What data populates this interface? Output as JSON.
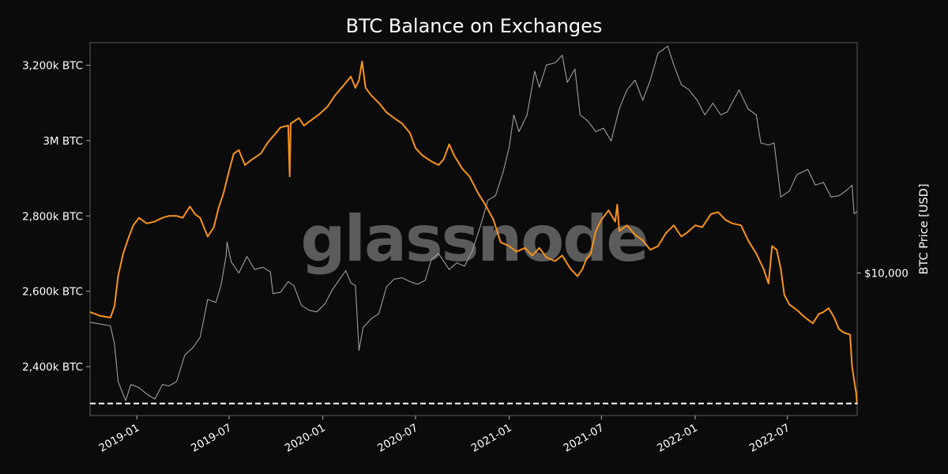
{
  "chart_data": {
    "type": "line",
    "title": "BTC Balance on Exchanges",
    "watermark": "glassnode",
    "xlabel": "",
    "ylabel_left": "",
    "ylabel_right": "BTC Price [USD]",
    "x_tick_labels": [
      "2019-01",
      "2019-07",
      "2020-01",
      "2020-07",
      "2021-01",
      "2021-07",
      "2022-01",
      "2022-07"
    ],
    "x_range": [
      "2018-10-01",
      "2022-11-15"
    ],
    "y_left_ticks": [
      {
        "value": 2400,
        "label": "2,400k BTC"
      },
      {
        "value": 2600,
        "label": "2,600k BTC"
      },
      {
        "value": 2800,
        "label": "2,800k BTC"
      },
      {
        "value": 3000,
        "label": "3M BTC"
      },
      {
        "value": 3200,
        "label": "3,200k BTC"
      }
    ],
    "y_left_unit": "k BTC",
    "y_left_range": [
      2270,
      3260
    ],
    "y_right_scale": "log",
    "y_right_range": [
      3000,
      70000
    ],
    "y_right_ticks": [
      {
        "value": 10000,
        "label": "$10,000"
      }
    ],
    "grid": false,
    "reference_line": {
      "value": 2302,
      "style": "dashed",
      "color": "#ffffff"
    },
    "series": [
      {
        "color": "#f7931a",
        "axis": "left",
        "points": [
          [
            "2018-10-01",
            2545
          ],
          [
            "2018-10-20",
            2535
          ],
          [
            "2018-11-10",
            2530
          ],
          [
            "2018-11-18",
            2560
          ],
          [
            "2018-11-25",
            2640
          ],
          [
            "2018-12-05",
            2700
          ],
          [
            "2018-12-15",
            2740
          ],
          [
            "2018-12-25",
            2775
          ],
          [
            "2019-01-05",
            2795
          ],
          [
            "2019-01-20",
            2780
          ],
          [
            "2019-02-05",
            2785
          ],
          [
            "2019-02-20",
            2795
          ],
          [
            "2019-03-05",
            2800
          ],
          [
            "2019-03-20",
            2800
          ],
          [
            "2019-04-01",
            2795
          ],
          [
            "2019-04-15",
            2825
          ],
          [
            "2019-04-25",
            2805
          ],
          [
            "2019-05-05",
            2795
          ],
          [
            "2019-05-20",
            2745
          ],
          [
            "2019-06-01",
            2770
          ],
          [
            "2019-06-10",
            2820
          ],
          [
            "2019-06-20",
            2860
          ],
          [
            "2019-07-01",
            2920
          ],
          [
            "2019-07-10",
            2965
          ],
          [
            "2019-07-20",
            2975
          ],
          [
            "2019-08-01",
            2935
          ],
          [
            "2019-08-15",
            2950
          ],
          [
            "2019-09-01",
            2965
          ],
          [
            "2019-09-15",
            2995
          ],
          [
            "2019-10-01",
            3020
          ],
          [
            "2019-10-10",
            3035
          ],
          [
            "2019-10-25",
            3040
          ],
          [
            "2019-10-28",
            2905
          ],
          [
            "2019-10-30",
            3045
          ],
          [
            "2019-11-15",
            3060
          ],
          [
            "2019-11-25",
            3040
          ],
          [
            "2019-12-10",
            3055
          ],
          [
            "2019-12-25",
            3070
          ],
          [
            "2020-01-10",
            3090
          ],
          [
            "2020-01-25",
            3120
          ],
          [
            "2020-02-10",
            3145
          ],
          [
            "2020-02-25",
            3170
          ],
          [
            "2020-03-05",
            3140
          ],
          [
            "2020-03-12",
            3160
          ],
          [
            "2020-03-18",
            3210
          ],
          [
            "2020-03-25",
            3140
          ],
          [
            "2020-04-05",
            3120
          ],
          [
            "2020-04-20",
            3100
          ],
          [
            "2020-05-05",
            3075
          ],
          [
            "2020-05-20",
            3060
          ],
          [
            "2020-06-05",
            3045
          ],
          [
            "2020-06-20",
            3020
          ],
          [
            "2020-07-01",
            2980
          ],
          [
            "2020-07-15",
            2960
          ],
          [
            "2020-08-01",
            2945
          ],
          [
            "2020-08-15",
            2935
          ],
          [
            "2020-08-25",
            2950
          ],
          [
            "2020-09-05",
            2990
          ],
          [
            "2020-09-15",
            2960
          ],
          [
            "2020-10-01",
            2925
          ],
          [
            "2020-10-15",
            2905
          ],
          [
            "2020-11-01",
            2860
          ],
          [
            "2020-11-15",
            2830
          ],
          [
            "2020-12-01",
            2790
          ],
          [
            "2020-12-15",
            2730
          ],
          [
            "2021-01-01",
            2720
          ],
          [
            "2021-01-15",
            2705
          ],
          [
            "2021-02-01",
            2715
          ],
          [
            "2021-02-15",
            2695
          ],
          [
            "2021-03-01",
            2715
          ],
          [
            "2021-03-15",
            2690
          ],
          [
            "2021-04-01",
            2680
          ],
          [
            "2021-04-15",
            2695
          ],
          [
            "2021-05-01",
            2660
          ],
          [
            "2021-05-15",
            2640
          ],
          [
            "2021-05-25",
            2660
          ],
          [
            "2021-06-01",
            2685
          ],
          [
            "2021-06-10",
            2700
          ],
          [
            "2021-06-20",
            2760
          ],
          [
            "2021-07-01",
            2790
          ],
          [
            "2021-07-15",
            2815
          ],
          [
            "2021-07-28",
            2785
          ],
          [
            "2021-08-01",
            2830
          ],
          [
            "2021-08-05",
            2760
          ],
          [
            "2021-08-20",
            2775
          ],
          [
            "2021-09-05",
            2750
          ],
          [
            "2021-09-20",
            2735
          ],
          [
            "2021-10-05",
            2710
          ],
          [
            "2021-10-20",
            2720
          ],
          [
            "2021-11-05",
            2755
          ],
          [
            "2021-11-20",
            2775
          ],
          [
            "2021-12-05",
            2745
          ],
          [
            "2021-12-20",
            2760
          ],
          [
            "2022-01-01",
            2775
          ],
          [
            "2022-01-15",
            2770
          ],
          [
            "2022-02-01",
            2805
          ],
          [
            "2022-02-15",
            2810
          ],
          [
            "2022-03-01",
            2790
          ],
          [
            "2022-03-15",
            2780
          ],
          [
            "2022-04-01",
            2775
          ],
          [
            "2022-04-15",
            2735
          ],
          [
            "2022-05-01",
            2700
          ],
          [
            "2022-05-15",
            2660
          ],
          [
            "2022-05-25",
            2620
          ],
          [
            "2022-06-01",
            2720
          ],
          [
            "2022-06-10",
            2710
          ],
          [
            "2022-06-18",
            2660
          ],
          [
            "2022-06-25",
            2590
          ],
          [
            "2022-07-05",
            2565
          ],
          [
            "2022-07-20",
            2550
          ],
          [
            "2022-08-05",
            2530
          ],
          [
            "2022-08-20",
            2515
          ],
          [
            "2022-09-01",
            2540
          ],
          [
            "2022-09-10",
            2545
          ],
          [
            "2022-09-20",
            2555
          ],
          [
            "2022-10-01",
            2530
          ],
          [
            "2022-10-10",
            2500
          ],
          [
            "2022-10-20",
            2490
          ],
          [
            "2022-11-01",
            2485
          ],
          [
            "2022-11-05",
            2400
          ],
          [
            "2022-11-10",
            2355
          ],
          [
            "2022-11-13",
            2330
          ],
          [
            "2022-11-15",
            2300
          ]
        ]
      },
      {
        "color": "#9e9e9e",
        "axis": "right",
        "points": [
          [
            "2018-10-01",
            6600
          ],
          [
            "2018-10-20",
            6500
          ],
          [
            "2018-11-10",
            6400
          ],
          [
            "2018-11-18",
            5500
          ],
          [
            "2018-11-25",
            4000
          ],
          [
            "2018-12-10",
            3400
          ],
          [
            "2018-12-20",
            3900
          ],
          [
            "2019-01-05",
            3800
          ],
          [
            "2019-01-20",
            3600
          ],
          [
            "2019-02-05",
            3450
          ],
          [
            "2019-02-20",
            3900
          ],
          [
            "2019-03-05",
            3850
          ],
          [
            "2019-03-20",
            4000
          ],
          [
            "2019-04-05",
            5000
          ],
          [
            "2019-04-20",
            5300
          ],
          [
            "2019-05-05",
            5800
          ],
          [
            "2019-05-20",
            8000
          ],
          [
            "2019-06-05",
            7800
          ],
          [
            "2019-06-15",
            9000
          ],
          [
            "2019-06-25",
            11500
          ],
          [
            "2019-06-27",
            13000
          ],
          [
            "2019-07-05",
            11000
          ],
          [
            "2019-07-20",
            10000
          ],
          [
            "2019-08-05",
            11500
          ],
          [
            "2019-08-20",
            10300
          ],
          [
            "2019-09-05",
            10500
          ],
          [
            "2019-09-20",
            10100
          ],
          [
            "2019-09-25",
            8400
          ],
          [
            "2019-10-10",
            8500
          ],
          [
            "2019-10-25",
            9300
          ],
          [
            "2019-11-05",
            9000
          ],
          [
            "2019-11-20",
            7600
          ],
          [
            "2019-12-05",
            7300
          ],
          [
            "2019-12-20",
            7200
          ],
          [
            "2020-01-05",
            7700
          ],
          [
            "2020-01-20",
            8700
          ],
          [
            "2020-02-05",
            9600
          ],
          [
            "2020-02-15",
            10200
          ],
          [
            "2020-02-25",
            9200
          ],
          [
            "2020-03-05",
            9000
          ],
          [
            "2020-03-12",
            5200
          ],
          [
            "2020-03-20",
            6300
          ],
          [
            "2020-04-05",
            6800
          ],
          [
            "2020-04-20",
            7100
          ],
          [
            "2020-05-05",
            8900
          ],
          [
            "2020-05-20",
            9500
          ],
          [
            "2020-06-05",
            9600
          ],
          [
            "2020-06-20",
            9300
          ],
          [
            "2020-07-05",
            9100
          ],
          [
            "2020-07-20",
            9400
          ],
          [
            "2020-08-01",
            11200
          ],
          [
            "2020-08-15",
            11800
          ],
          [
            "2020-09-05",
            10300
          ],
          [
            "2020-09-20",
            10900
          ],
          [
            "2020-10-05",
            10600
          ],
          [
            "2020-10-20",
            12000
          ],
          [
            "2020-11-05",
            14800
          ],
          [
            "2020-11-20",
            18500
          ],
          [
            "2020-12-05",
            19200
          ],
          [
            "2020-12-20",
            23500
          ],
          [
            "2021-01-01",
            29000
          ],
          [
            "2021-01-10",
            38000
          ],
          [
            "2021-01-20",
            33000
          ],
          [
            "2021-02-05",
            38000
          ],
          [
            "2021-02-20",
            55000
          ],
          [
            "2021-03-01",
            48000
          ],
          [
            "2021-03-15",
            58000
          ],
          [
            "2021-04-01",
            59000
          ],
          [
            "2021-04-15",
            63000
          ],
          [
            "2021-04-25",
            50000
          ],
          [
            "2021-05-10",
            56000
          ],
          [
            "2021-05-20",
            38000
          ],
          [
            "2021-06-05",
            36000
          ],
          [
            "2021-06-20",
            33000
          ],
          [
            "2021-07-05",
            34000
          ],
          [
            "2021-07-20",
            30500
          ],
          [
            "2021-08-05",
            40000
          ],
          [
            "2021-08-20",
            47000
          ],
          [
            "2021-09-05",
            51000
          ],
          [
            "2021-09-20",
            43000
          ],
          [
            "2021-10-05",
            51000
          ],
          [
            "2021-10-20",
            64000
          ],
          [
            "2021-11-08",
            68000
          ],
          [
            "2021-11-20",
            58000
          ],
          [
            "2021-12-05",
            49000
          ],
          [
            "2021-12-20",
            47000
          ],
          [
            "2022-01-05",
            43000
          ],
          [
            "2022-01-20",
            38000
          ],
          [
            "2022-02-05",
            42000
          ],
          [
            "2022-02-20",
            38000
          ],
          [
            "2022-03-05",
            39000
          ],
          [
            "2022-03-28",
            47000
          ],
          [
            "2022-04-15",
            40000
          ],
          [
            "2022-05-01",
            38000
          ],
          [
            "2022-05-10",
            30000
          ],
          [
            "2022-05-25",
            29500
          ],
          [
            "2022-06-05",
            30000
          ],
          [
            "2022-06-18",
            19000
          ],
          [
            "2022-07-05",
            20000
          ],
          [
            "2022-07-20",
            23000
          ],
          [
            "2022-08-10",
            24000
          ],
          [
            "2022-08-25",
            21000
          ],
          [
            "2022-09-10",
            21500
          ],
          [
            "2022-09-25",
            19000
          ],
          [
            "2022-10-10",
            19200
          ],
          [
            "2022-10-25",
            20100
          ],
          [
            "2022-11-05",
            21000
          ],
          [
            "2022-11-09",
            16500
          ],
          [
            "2022-11-15",
            16800
          ]
        ]
      }
    ]
  }
}
